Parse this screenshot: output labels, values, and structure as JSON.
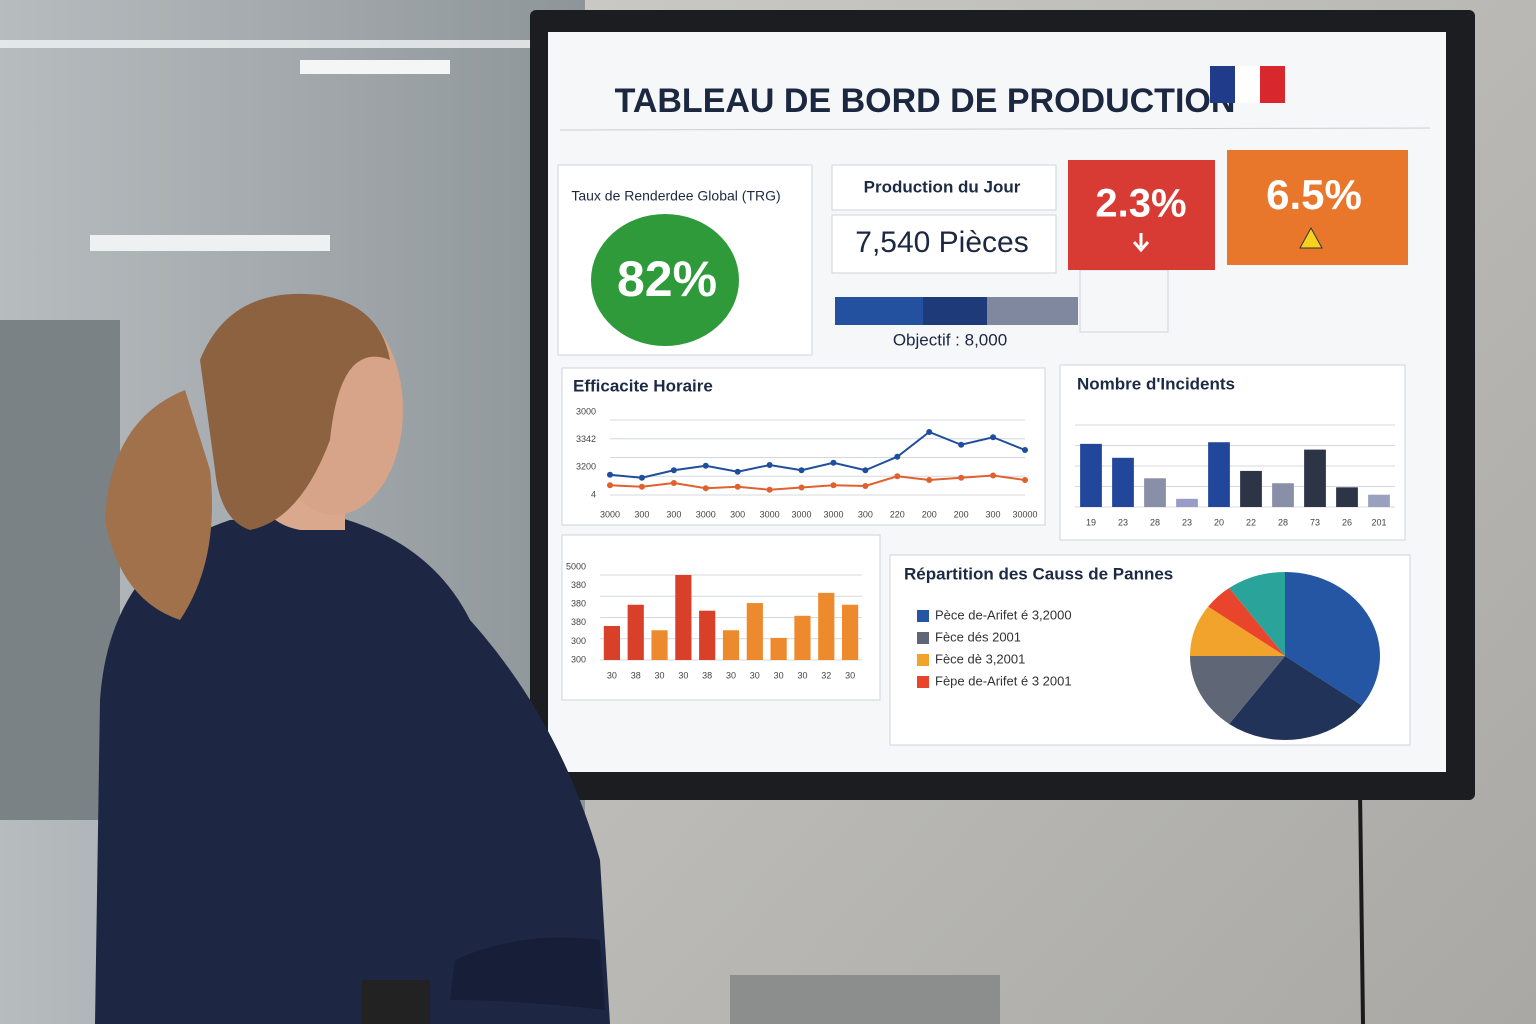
{
  "header": {
    "title": "TABLEAU DE BORD DE PRODUCTION"
  },
  "kpis": {
    "trg": {
      "label": "Taux de Renderdee Global (TRG)",
      "value_label": "82%"
    },
    "production": {
      "label": "Production du Jour",
      "value_label": "7,540 Pièces",
      "target_label": "Objectif : 8,000"
    },
    "alerts": [
      {
        "value_label": "2.3%"
      },
      {
        "value_label": "6.5%"
      }
    ]
  },
  "chart_data": [
    {
      "type": "line",
      "title": "Efficacite Horaire",
      "categories": [
        "3000",
        "300",
        "300",
        "3000",
        "300",
        "3000",
        "3000",
        "3000",
        "300",
        "220",
        "200",
        "200",
        "300",
        "30000"
      ],
      "y_axis_labels": [
        "3000",
        "3342",
        "3200",
        "4"
      ],
      "series": [
        {
          "color": "#1f4e9c",
          "values": [
            27,
            23,
            33,
            39,
            31,
            40,
            33,
            43,
            33,
            51,
            84,
            67,
            77,
            60
          ]
        },
        {
          "color": "#e0612f",
          "values": [
            13,
            11,
            16,
            9,
            11,
            7,
            10,
            13,
            12,
            25,
            20,
            23,
            26,
            20
          ]
        }
      ],
      "ylim": [
        0,
        100
      ],
      "grid": true
    },
    {
      "type": "bar",
      "title": "Nombre d'Incidents",
      "categories": [
        "19",
        "23",
        "28",
        "23",
        "20",
        "22",
        "28",
        "73",
        "26",
        "201"
      ],
      "values": [
        77,
        60,
        35,
        10,
        79,
        44,
        29,
        70,
        24,
        15
      ],
      "colors": [
        "#22479a",
        "#22479a",
        "#8a8fa8",
        "#9a9cc8",
        "#22479a",
        "#2c3445",
        "#8a8fa8",
        "#2c3445",
        "#2c3445",
        "#9aa0c0"
      ],
      "ylim": [
        0,
        100
      ],
      "grid": true
    },
    {
      "type": "bar",
      "categories": [
        "30",
        "38",
        "30",
        "30",
        "38",
        "30",
        "30",
        "30",
        "30",
        "32",
        "30"
      ],
      "y_axis_labels": [
        "5000",
        "380",
        "380",
        "380",
        "300",
        "300"
      ],
      "values": [
        40,
        65,
        35,
        100,
        58,
        35,
        67,
        26,
        52,
        79,
        65
      ],
      "colors": [
        "#d8402a",
        "#d8402a",
        "#ee8a2e",
        "#d8402a",
        "#d8402a",
        "#ee8a2e",
        "#ee8a2e",
        "#ee8a2e",
        "#ee8a2e",
        "#ee8a2e",
        "#ee8a2e"
      ],
      "ylim": [
        0,
        100
      ],
      "grid": true
    },
    {
      "type": "pie",
      "title": "Répartition des Causs de Pannes",
      "categories": [
        "Pèce de-Arifet é 3,2000",
        null,
        "Fèce dés 2001",
        "Fèce dè 3,2001",
        "Fèpe de-Arifet é 3 2001",
        null
      ],
      "values": [
        35,
        25,
        15,
        10,
        5,
        10
      ],
      "colors": [
        "#2456a4",
        "#22335a",
        "#5f6675",
        "#f2a32c",
        "#e8452c",
        "#2aa39a"
      ]
    }
  ]
}
